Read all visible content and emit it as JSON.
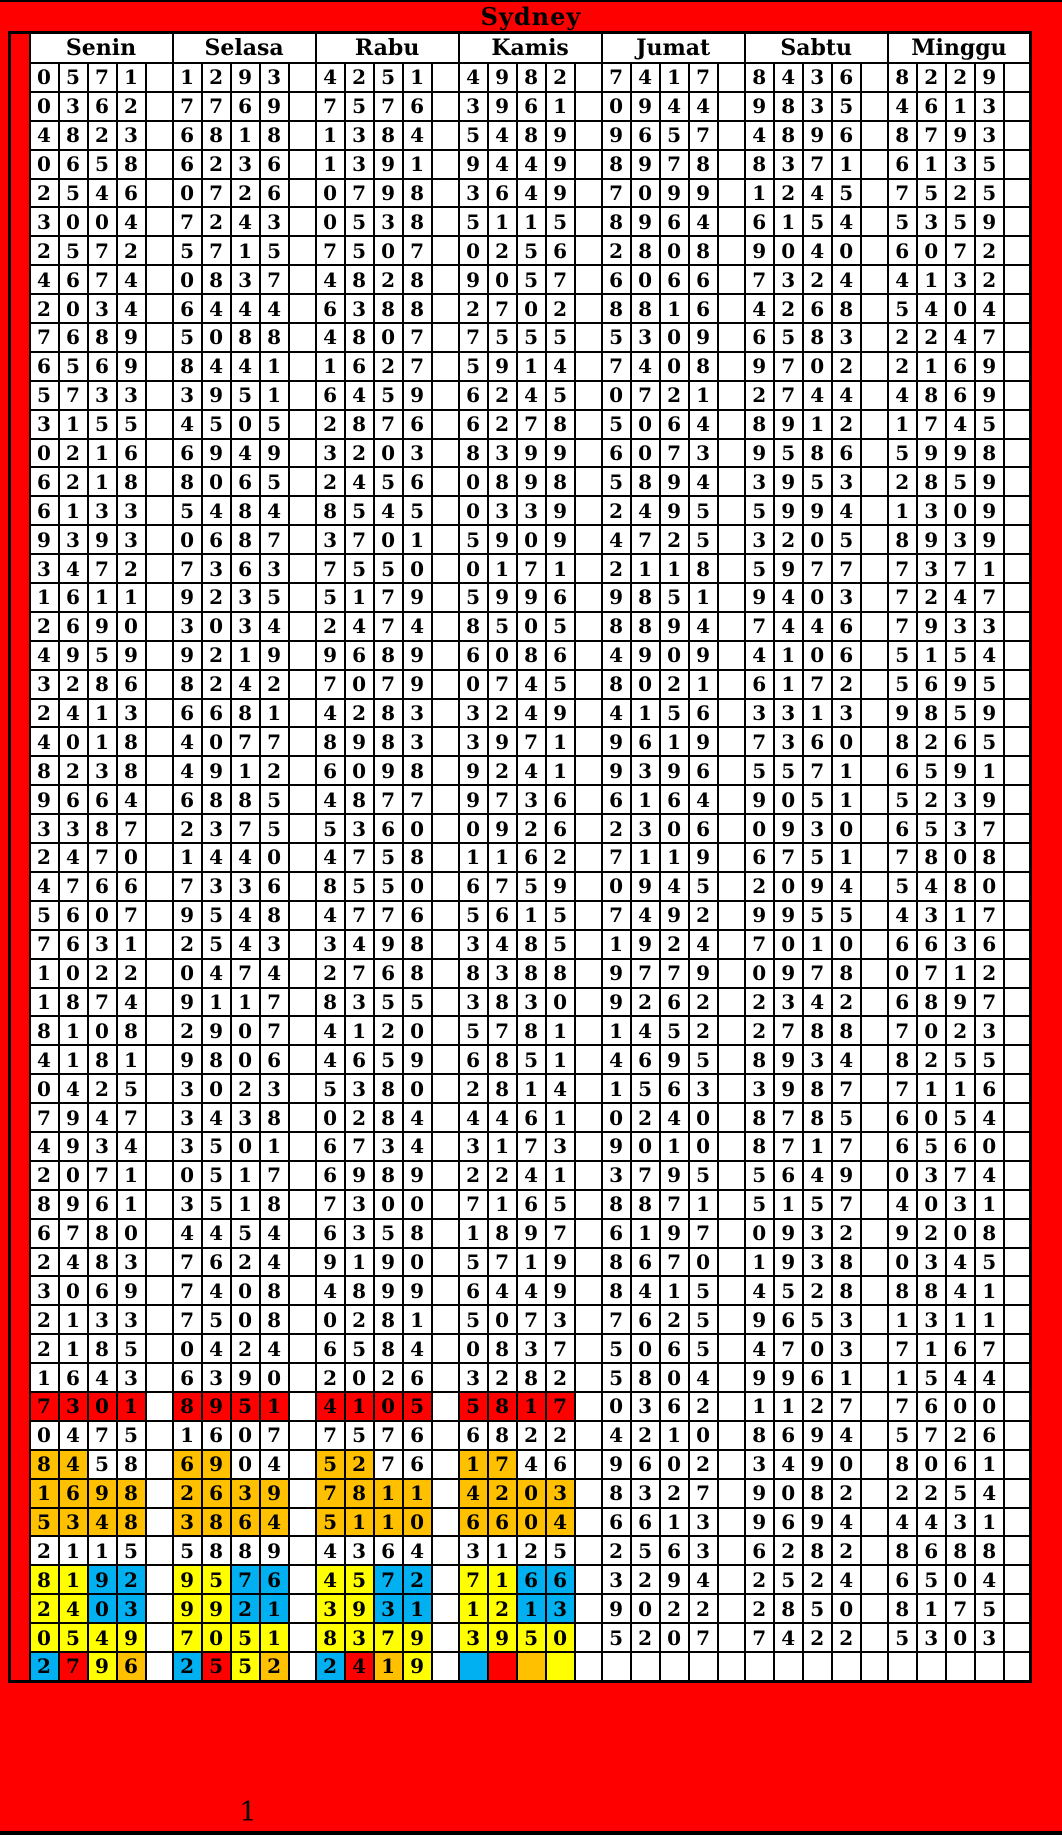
{
  "title": "Sydney",
  "page_number": "1",
  "days": [
    "Senin",
    "Selasa",
    "Rabu",
    "Kamis",
    "Jumat",
    "Sabtu",
    "Minggu"
  ],
  "colors": {
    "frame": "#ff0000",
    "highlight_red": "#ff0000",
    "highlight_orange": "#ffc000",
    "highlight_yellow": "#ffff00",
    "highlight_blue": "#00b0f0",
    "grid": "#000000",
    "cell_bg": "#ffffff",
    "text": "#000000"
  },
  "highlight_legend": {
    "r": "red",
    "o": "orange",
    "y": "yellow",
    "b": "blue",
    "-": "none"
  },
  "rows": [
    [
      "0571",
      "1293",
      "4251",
      "4982",
      "7417",
      "8436",
      "8229"
    ],
    [
      "0362",
      "7769",
      "7576",
      "3961",
      "0944",
      "9835",
      "4613"
    ],
    [
      "4823",
      "6818",
      "1384",
      "5489",
      "9657",
      "4896",
      "8793"
    ],
    [
      "0658",
      "6236",
      "1391",
      "9449",
      "8978",
      "8371",
      "6135"
    ],
    [
      "2546",
      "0726",
      "0798",
      "3649",
      "7099",
      "1245",
      "7525"
    ],
    [
      "3004",
      "7243",
      "0538",
      "5115",
      "8964",
      "6154",
      "5359"
    ],
    [
      "2572",
      "5715",
      "7507",
      "0256",
      "2808",
      "9040",
      "6072"
    ],
    [
      "4674",
      "0837",
      "4828",
      "9057",
      "6066",
      "7324",
      "4132"
    ],
    [
      "2034",
      "6444",
      "6388",
      "2702",
      "8816",
      "4268",
      "5404"
    ],
    [
      "7689",
      "5088",
      "4807",
      "7555",
      "5309",
      "6583",
      "2247"
    ],
    [
      "6569",
      "8441",
      "1627",
      "5914",
      "7408",
      "9702",
      "2169"
    ],
    [
      "5733",
      "3951",
      "6459",
      "6245",
      "0721",
      "2744",
      "4869"
    ],
    [
      "3155",
      "4505",
      "2876",
      "6278",
      "5064",
      "8912",
      "1745"
    ],
    [
      "0216",
      "6949",
      "3203",
      "8399",
      "6073",
      "9586",
      "5998"
    ],
    [
      "6218",
      "8065",
      "2456",
      "0898",
      "5894",
      "3953",
      "2859"
    ],
    [
      "6133",
      "5484",
      "8545",
      "0339",
      "2495",
      "5994",
      "1309"
    ],
    [
      "9393",
      "0687",
      "3701",
      "5909",
      "4725",
      "3205",
      "8939"
    ],
    [
      "3472",
      "7363",
      "7550",
      "0171",
      "2118",
      "5977",
      "7371"
    ],
    [
      "1611",
      "9235",
      "5179",
      "5996",
      "9851",
      "9403",
      "7247"
    ],
    [
      "2690",
      "3034",
      "2474",
      "8505",
      "8894",
      "7446",
      "7933"
    ],
    [
      "4959",
      "9219",
      "9689",
      "6086",
      "4909",
      "4106",
      "5154"
    ],
    [
      "3286",
      "8242",
      "7079",
      "0745",
      "8021",
      "6172",
      "5695"
    ],
    [
      "2413",
      "6681",
      "4283",
      "3249",
      "4156",
      "3313",
      "9859"
    ],
    [
      "4018",
      "4077",
      "8983",
      "3971",
      "9619",
      "7360",
      "8265"
    ],
    [
      "8238",
      "4912",
      "6098",
      "9241",
      "9396",
      "5571",
      "6591"
    ],
    [
      "9664",
      "6885",
      "4877",
      "9736",
      "6164",
      "9051",
      "5239"
    ],
    [
      "3387",
      "2375",
      "5360",
      "0926",
      "2306",
      "0930",
      "6537"
    ],
    [
      "2470",
      "1440",
      "4758",
      "1162",
      "7119",
      "6751",
      "7808"
    ],
    [
      "4766",
      "7336",
      "8550",
      "6759",
      "0945",
      "2094",
      "5480"
    ],
    [
      "5607",
      "9548",
      "4776",
      "5615",
      "7492",
      "9955",
      "4317"
    ],
    [
      "7631",
      "2543",
      "3498",
      "3485",
      "1924",
      "7010",
      "6636"
    ],
    [
      "1022",
      "0474",
      "2768",
      "8388",
      "9779",
      "0978",
      "0712"
    ],
    [
      "1874",
      "9117",
      "8355",
      "3830",
      "9262",
      "2342",
      "6897"
    ],
    [
      "8108",
      "2907",
      "4120",
      "5781",
      "1452",
      "2788",
      "7023"
    ],
    [
      "4181",
      "9806",
      "4659",
      "6851",
      "4695",
      "8934",
      "8255"
    ],
    [
      "0425",
      "3023",
      "5380",
      "2814",
      "1563",
      "3987",
      "7116"
    ],
    [
      "7947",
      "3438",
      "0284",
      "4461",
      "0240",
      "8785",
      "6054"
    ],
    [
      "4934",
      "3501",
      "6734",
      "3173",
      "9010",
      "8717",
      "6560"
    ],
    [
      "2071",
      "0517",
      "6989",
      "2241",
      "3795",
      "5649",
      "0374"
    ],
    [
      "8961",
      "3518",
      "7300",
      "7165",
      "8871",
      "5157",
      "4031"
    ],
    [
      "6780",
      "4454",
      "6358",
      "1897",
      "6197",
      "0932",
      "9208"
    ],
    [
      "2483",
      "7624",
      "9190",
      "5719",
      "8670",
      "1938",
      "0345"
    ],
    [
      "3069",
      "7408",
      "4899",
      "6449",
      "8415",
      "4528",
      "8841"
    ],
    [
      "2133",
      "7508",
      "0281",
      "5073",
      "7625",
      "9653",
      "1311"
    ],
    [
      "2185",
      "0424",
      "6584",
      "0837",
      "5065",
      "4703",
      "7167"
    ],
    [
      "1643",
      "6390",
      "2026",
      "3282",
      "5804",
      "9961",
      "1544"
    ],
    [
      "7301",
      "8951",
      "4105",
      "5817",
      "0362",
      "1127",
      "7600"
    ],
    [
      "0475",
      "1607",
      "7576",
      "6822",
      "4210",
      "8694",
      "5726"
    ],
    [
      "8458",
      "6904",
      "5276",
      "1746",
      "9602",
      "3490",
      "8061"
    ],
    [
      "1698",
      "2639",
      "7811",
      "4203",
      "8327",
      "9082",
      "2254"
    ],
    [
      "5348",
      "3864",
      "5110",
      "6604",
      "6613",
      "9694",
      "4431"
    ],
    [
      "2115",
      "5889",
      "4364",
      "3125",
      "2563",
      "6282",
      "8688"
    ],
    [
      "8192",
      "9576",
      "4572",
      "7166",
      "3294",
      "2524",
      "6504"
    ],
    [
      "2403",
      "9921",
      "3931",
      "1213",
      "9022",
      "2850",
      "8175"
    ],
    [
      "0549",
      "7051",
      "8379",
      "3950",
      "5207",
      "7422",
      "5303"
    ],
    [
      "2796",
      "2552",
      "2419",
      "",
      "",
      "",
      ""
    ]
  ],
  "highlights": {
    "46": [
      "rrrr",
      "rrrr",
      "rrrr",
      "rrrr"
    ],
    "48": [
      "oo--",
      "oo--",
      "oo--",
      "oo--"
    ],
    "49": [
      "oooo",
      "oooo",
      "oooo",
      "oooo"
    ],
    "50": [
      "oooo",
      "oooo",
      "oooo",
      "oooo"
    ],
    "52": [
      "yybb",
      "yybb",
      "yybb",
      "yybb"
    ],
    "53": [
      "yybb",
      "yybb",
      "yybb",
      "yybb"
    ],
    "54": [
      "yyyy",
      "yyyy",
      "yyyy",
      "yyyy"
    ],
    "55": [
      "bryo",
      "bryo",
      "broy",
      "broy"
    ]
  }
}
